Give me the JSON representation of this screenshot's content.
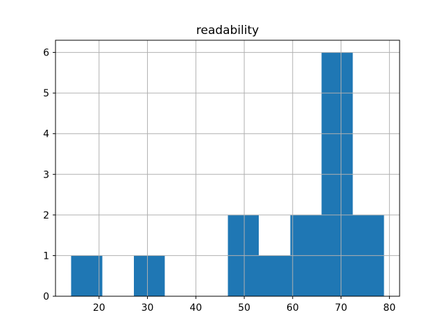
{
  "title": "readability",
  "colors": {
    "bar": "#1f77b4",
    "grid": "#b0b0b0",
    "spine": "#000000",
    "background": "#ffffff",
    "text": "#000000"
  },
  "chart_data": {
    "type": "bar",
    "subtype": "histogram",
    "title": "readability",
    "xlabel": "",
    "ylabel": "",
    "bin_edges": [
      14.2,
      20.7,
      27.2,
      33.6,
      40.1,
      46.6,
      53.0,
      59.5,
      66.0,
      72.4,
      78.9
    ],
    "counts": [
      1,
      0,
      1,
      0,
      0,
      2,
      1,
      2,
      6,
      2
    ],
    "xlim": [
      11.0,
      82.1
    ],
    "ylim": [
      0,
      6.3
    ],
    "x_ticks": [
      20,
      30,
      40,
      50,
      60,
      70,
      80
    ],
    "y_ticks": [
      0,
      1,
      2,
      3,
      4,
      5,
      6
    ],
    "grid": true,
    "grid_above_bars": true,
    "legend": null
  }
}
